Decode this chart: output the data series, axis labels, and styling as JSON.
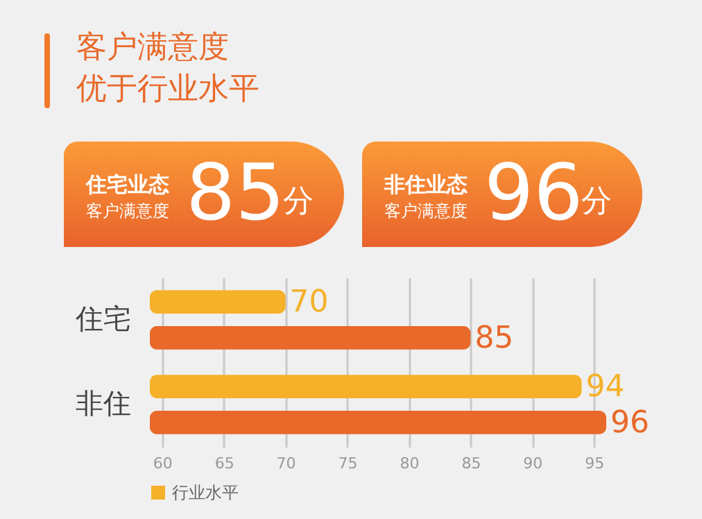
{
  "chart_data": {
    "type": "bar",
    "orientation": "horizontal",
    "title": "客户满意度",
    "subtitle": "优于行业水平",
    "annotations": [
      "住宅业态",
      "客户满意度",
      "85",
      "分",
      "非住业态",
      "客户满意度",
      "96",
      "分"
    ],
    "categories": [
      "住宅",
      "非住"
    ],
    "series": [
      {
        "name": "行业水平",
        "color": "#f5b12a",
        "values": [
          70,
          94
        ]
      },
      {
        "color": "#e8692a",
        "values": [
          85,
          96
        ]
      }
    ],
    "xlim": [
      59,
      96
    ],
    "xticks": [
      60,
      65,
      70,
      75,
      80,
      85,
      90,
      95
    ],
    "grid": "x",
    "legend": "bottom left",
    "data_labels": true
  }
}
